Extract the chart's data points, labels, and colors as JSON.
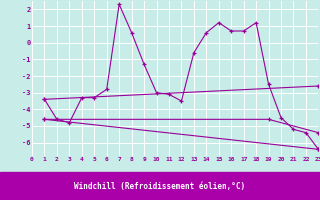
{
  "xlabel": "Windchill (Refroidissement éolien,°C)",
  "background_color": "#c8ece8",
  "line_color": "#990099",
  "grid_color": "#ffffff",
  "xlim": [
    0,
    23
  ],
  "ylim": [
    -6.8,
    2.5
  ],
  "xticks": [
    0,
    1,
    2,
    3,
    4,
    5,
    6,
    7,
    8,
    9,
    10,
    11,
    12,
    13,
    14,
    15,
    16,
    17,
    18,
    19,
    20,
    21,
    22,
    23
  ],
  "yticks": [
    -6,
    -5,
    -4,
    -3,
    -2,
    -1,
    0,
    1,
    2
  ],
  "tick_color": "#990099",
  "xlabel_bg": "#aa00aa",
  "xlabel_fg": "#ffffff",
  "series": [
    {
      "x": [
        1,
        2,
        3,
        4,
        5,
        6,
        7,
        8,
        9,
        10,
        11,
        12,
        13,
        14,
        15,
        16,
        17,
        18,
        19,
        20,
        21,
        22,
        23
      ],
      "y": [
        -3.4,
        -4.6,
        -4.8,
        -3.3,
        -3.3,
        -2.8,
        2.3,
        0.6,
        -1.3,
        -3.0,
        -3.1,
        -3.5,
        -0.6,
        0.6,
        1.2,
        0.7,
        0.7,
        1.2,
        -2.5,
        -4.5,
        -5.2,
        -5.4,
        -6.4
      ]
    },
    {
      "x": [
        1,
        23
      ],
      "y": [
        -3.4,
        -2.6
      ]
    },
    {
      "x": [
        1,
        19,
        23
      ],
      "y": [
        -4.6,
        -4.6,
        -5.4
      ]
    },
    {
      "x": [
        1,
        23
      ],
      "y": [
        -4.6,
        -6.4
      ]
    }
  ]
}
